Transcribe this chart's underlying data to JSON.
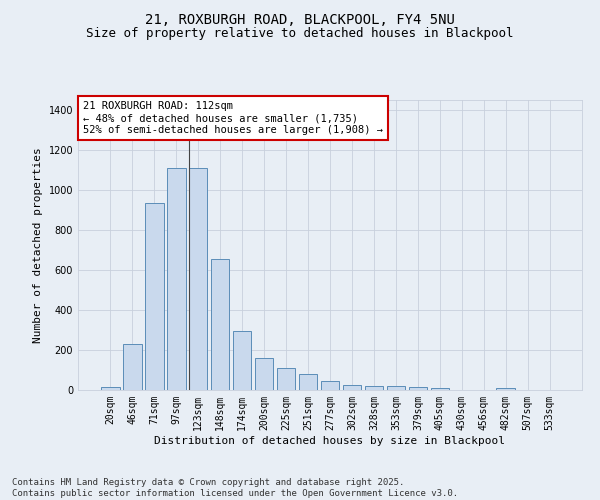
{
  "title1": "21, ROXBURGH ROAD, BLACKPOOL, FY4 5NU",
  "title2": "Size of property relative to detached houses in Blackpool",
  "xlabel": "Distribution of detached houses by size in Blackpool",
  "ylabel": "Number of detached properties",
  "categories": [
    "20sqm",
    "46sqm",
    "71sqm",
    "97sqm",
    "123sqm",
    "148sqm",
    "174sqm",
    "200sqm",
    "225sqm",
    "251sqm",
    "277sqm",
    "302sqm",
    "328sqm",
    "353sqm",
    "379sqm",
    "405sqm",
    "430sqm",
    "456sqm",
    "482sqm",
    "507sqm",
    "533sqm"
  ],
  "values": [
    15,
    230,
    935,
    1110,
    1110,
    655,
    295,
    160,
    110,
    80,
    45,
    25,
    20,
    20,
    15,
    10,
    0,
    0,
    10,
    0,
    0
  ],
  "bar_color": "#c9d9ed",
  "bar_edge_color": "#5b8db8",
  "ylim": [
    0,
    1450
  ],
  "yticks": [
    0,
    200,
    400,
    600,
    800,
    1000,
    1200,
    1400
  ],
  "annotation_text": "21 ROXBURGH ROAD: 112sqm\n← 48% of detached houses are smaller (1,735)\n52% of semi-detached houses are larger (1,908) →",
  "annotation_box_color": "#ffffff",
  "annotation_box_edge": "#cc0000",
  "grid_color": "#c8d0dc",
  "background_color": "#e8eef5",
  "footer_text": "Contains HM Land Registry data © Crown copyright and database right 2025.\nContains public sector information licensed under the Open Government Licence v3.0.",
  "title_fontsize": 10,
  "subtitle_fontsize": 9,
  "axis_label_fontsize": 8,
  "tick_fontsize": 7,
  "annotation_fontsize": 7.5,
  "footer_fontsize": 6.5
}
